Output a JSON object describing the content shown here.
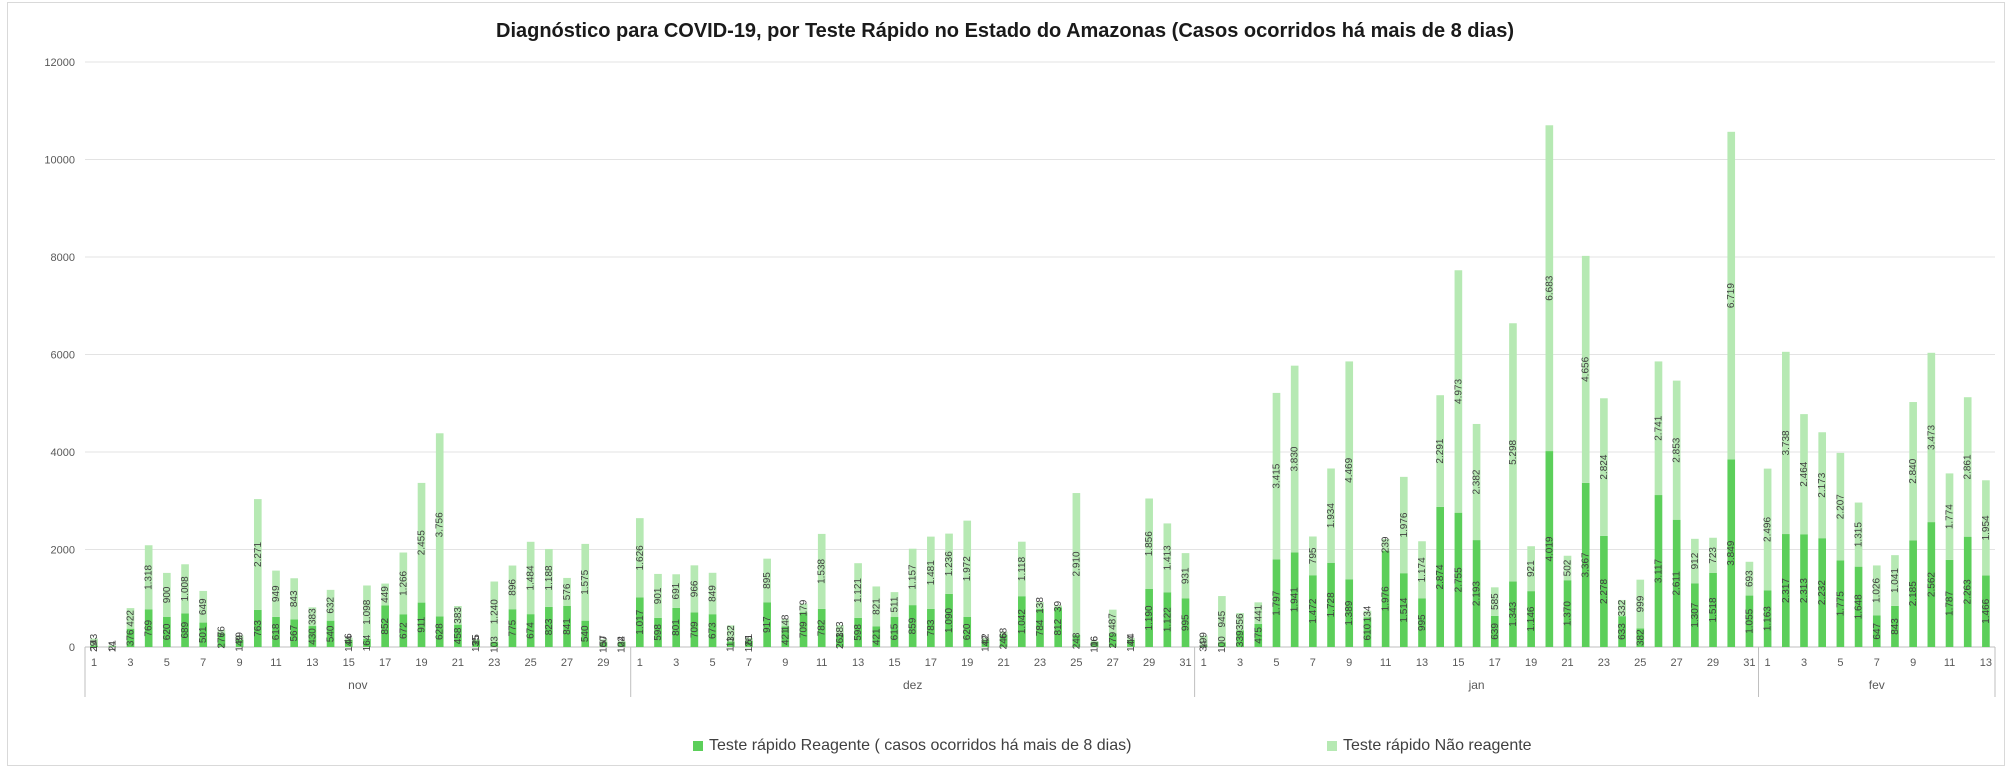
{
  "colors": {
    "reagente": "#5ccf5a",
    "nao_reagente": "#b6e9b3",
    "grid": "#e3e3e3",
    "axis": "#bfbfbf",
    "text": "#595959"
  },
  "chart_data": {
    "type": "bar",
    "stacked": true,
    "title": "Diagnóstico para COVID-19, por  Teste Rápido no Estado do Amazonas (Casos ocorridos há mais de 8 dias)",
    "ylim": [
      0,
      12000
    ],
    "yticks": [
      0,
      2000,
      4000,
      6000,
      8000,
      10000,
      12000
    ],
    "grid": true,
    "legend_position": "bottom",
    "months": [
      {
        "name": "nov",
        "days": 30
      },
      {
        "name": "dez",
        "days": 31
      },
      {
        "name": "jan",
        "days": 31
      },
      {
        "name": "fev",
        "days": 13
      }
    ],
    "series": [
      {
        "name": "Teste rápido Reagente ( casos ocorridos há mais de 8 dias)",
        "values": [
          29,
          14,
          376,
          769,
          620,
          689,
          501,
          276,
          149,
          763,
          618,
          567,
          430,
          540,
          144,
          164,
          852,
          672,
          911,
          628,
          458,
          135,
          103,
          775,
          674,
          823,
          841,
          540,
          100,
          102,
          1017,
          598,
          801,
          709,
          673,
          111,
          126,
          917,
          421,
          709,
          782,
          263,
          598,
          421,
          615,
          859,
          783,
          1090,
          620,
          142,
          246,
          1042,
          784,
          812,
          248,
          106,
          279,
          144,
          1190,
          1122,
          995,
          34,
          100,
          339,
          475,
          1797,
          1941,
          1472,
          1728,
          1389,
          610,
          1976,
          1514,
          995,
          2874,
          2755,
          2193,
          639,
          1343,
          1146,
          4019,
          1370,
          3367,
          2278,
          633,
          382,
          3117,
          2611,
          1307,
          1518,
          3849,
          1055,
          1163,
          2317,
          2313,
          2232,
          1775,
          1648,
          647,
          843,
          2185,
          2562,
          1787,
          2263,
          1466
        ],
        "labels": [
          "29",
          "14",
          "376",
          "769",
          "620",
          "689",
          "501",
          "276",
          "149",
          "763",
          "618",
          "567",
          "430",
          "540",
          "144",
          "164",
          "852",
          "672",
          "911",
          "628",
          "458",
          "135",
          "103",
          "775",
          "674",
          "823",
          "841",
          "540",
          "100",
          "102",
          "1.017",
          "598",
          "801",
          "709",
          "673",
          "111",
          "126",
          "917",
          "421",
          "709",
          "782",
          "263",
          "598",
          "421",
          "615",
          "859",
          "783",
          "1.090",
          "620",
          "142",
          "246",
          "1.042",
          "784",
          "812",
          "248",
          "106",
          "279",
          "144",
          "1.190",
          "1.122",
          "995",
          "34",
          "100",
          "339",
          "475",
          "1.797",
          "1.941",
          "1.472",
          "1.728",
          "1.389",
          "610",
          "1.976",
          "1.514",
          "995",
          "2.874",
          "2.755",
          "2.193",
          "639",
          "1.343",
          "1.146",
          "4.019",
          "1.370",
          "3.367",
          "2.278",
          "633",
          "382",
          "3.117",
          "2.611",
          "1.307",
          "1.518",
          "3.849",
          "1.055",
          "1.163",
          "2.317",
          "2.313",
          "2.232",
          "1.775",
          "1.648",
          "647",
          "843",
          "2.185",
          "2.562",
          "1.787",
          "2.263",
          "1.466"
        ]
      },
      {
        "name": "Teste rápido Não reagente",
        "values": [
          143,
          21,
          422,
          1318,
          900,
          1008,
          649,
          76,
          89,
          2271,
          949,
          843,
          383,
          632,
          46,
          1098,
          449,
          1266,
          2455,
          3756,
          383,
          25,
          1240,
          896,
          1484,
          1188,
          576,
          1575,
          57,
          24,
          1626,
          901,
          691,
          966,
          849,
          332,
          61,
          895,
          148,
          179,
          1538,
          183,
          1121,
          821,
          511,
          1157,
          1481,
          1236,
          1972,
          42,
          68,
          1118,
          138,
          39,
          2910,
          16,
          487,
          44,
          1856,
          1413,
          931,
          199,
          945,
          356,
          441,
          3415,
          3830,
          795,
          1934,
          4469,
          134,
          239,
          1976,
          1174,
          2291,
          4973,
          2382,
          585,
          5298,
          921,
          6683,
          502,
          4656,
          2824,
          332,
          999,
          2741,
          2853,
          912,
          723,
          6719,
          693,
          2496,
          3738,
          2464,
          2173,
          2207,
          1315,
          1026,
          1041,
          2840,
          3473,
          1774,
          2861,
          1954
        ],
        "labels": [
          "143",
          "21",
          "422",
          "1.318",
          "900",
          "1.008",
          "649",
          "76",
          "89",
          "2.271",
          "949",
          "843",
          "383",
          "632",
          "46",
          "1.098",
          "449",
          "1.266",
          "2.455",
          "3.756",
          "383",
          "25",
          "1.240",
          "896",
          "1.484",
          "1.188",
          "576",
          "1.575",
          "57",
          "24",
          "1.626",
          "901",
          "691",
          "966",
          "849",
          "332",
          "61",
          "895",
          "148",
          "179",
          "1.538",
          "183",
          "1.121",
          "821",
          "511",
          "1.157",
          "1.481",
          "1.236",
          "1.972",
          "42",
          "68",
          "1.118",
          "138",
          "39",
          "2.910",
          "16",
          "487",
          "44",
          "1.856",
          "1.413",
          "931",
          "199",
          "945",
          "356",
          "441",
          "3.415",
          "3.830",
          "795",
          "1.934",
          "4.469",
          "134",
          "239",
          "1.976",
          "1.174",
          "2.291",
          "4.973",
          "2.382",
          "585",
          "5.298",
          "921",
          "6.683",
          "502",
          "4.656",
          "2.824",
          "332",
          "999",
          "2.741",
          "2.853",
          "912",
          "723",
          "6.719",
          "693",
          "2.496",
          "3.738",
          "2.464",
          "2.173",
          "2.207",
          "1.315",
          "1.026",
          "1.041",
          "2.840",
          "3.473",
          "1.774",
          "2.861",
          "1.954"
        ]
      }
    ]
  }
}
